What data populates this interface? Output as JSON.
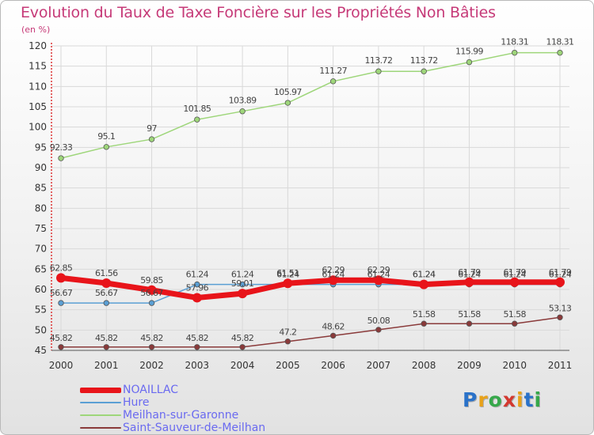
{
  "title": "Evolution du Taux de Taxe Foncière sur les Propriétés Non Bâties",
  "unit": "(en %)",
  "logo": {
    "text": "Proxiti",
    "letter_colors": [
      "#2a72c9",
      "#e8a21a",
      "#36a84a",
      "#d3382f",
      "#e8a21a",
      "#2a72c9",
      "#36a84a"
    ]
  },
  "chart_data": {
    "type": "line",
    "title": "Evolution du Taux de Taxe Foncière sur les Propriétés Non Bâties",
    "ylabel": "(en %)",
    "xlabel": "",
    "x": [
      "2000",
      "2001",
      "2002",
      "2003",
      "2004",
      "2005",
      "2006",
      "2007",
      "2008",
      "2009",
      "2010",
      "2011"
    ],
    "ylim": [
      45,
      120
    ],
    "yticks": [
      "45",
      "50",
      "55",
      "60",
      "65",
      "70",
      "75",
      "80",
      "85",
      "90",
      "95",
      "100",
      "105",
      "110",
      "115",
      "120"
    ],
    "grid": true,
    "legend_position": "bottom-left",
    "series": [
      {
        "name": "NOAILLAC",
        "color": "#e8141a",
        "values": [
          62.85,
          61.56,
          59.85,
          57.96,
          59.01,
          61.51,
          62.29,
          62.29,
          61.24,
          61.79,
          61.79,
          61.79
        ],
        "labels": [
          "62.85",
          "61.56",
          "59.85",
          "57.96",
          "59.01",
          "61.51",
          "62.29",
          "62.29",
          "61.24",
          "61.79",
          "61.79",
          "61.79"
        ]
      },
      {
        "name": "Hure",
        "color": "#5a9fd4",
        "values": [
          56.67,
          56.67,
          56.67,
          61.24,
          61.24,
          61.24,
          61.24,
          61.24,
          61.24,
          61.24,
          61.24,
          61.24
        ],
        "labels": [
          "56.67",
          "56.67",
          "56.67",
          "61.24",
          "61.24",
          "61.24",
          "61.24",
          "61.24",
          "61.24",
          "61.24",
          "61.24",
          "61.24"
        ]
      },
      {
        "name": "Meilhan-sur-Garonne",
        "color": "#9ed67a",
        "values": [
          92.33,
          95.1,
          97,
          101.85,
          103.89,
          105.97,
          111.27,
          113.72,
          113.72,
          115.99,
          118.31,
          118.31
        ],
        "labels": [
          "92.33",
          "95.1",
          "97",
          "101.85",
          "103.89",
          "105.97",
          "111.27",
          "113.72",
          "113.72",
          "115.99",
          "118.31",
          "118.31"
        ]
      },
      {
        "name": "Saint-Sauveur-de-Meilhan",
        "color": "#8a3a3a",
        "values": [
          45.82,
          45.82,
          45.82,
          45.82,
          45.82,
          47.2,
          48.62,
          50.08,
          51.58,
          51.58,
          51.58,
          53.13
        ],
        "labels": [
          "45.82",
          "45.82",
          "45.82",
          "45.82",
          "45.82",
          "47.2",
          "48.62",
          "50.08",
          "51.58",
          "51.58",
          "51.58",
          "53.13"
        ]
      }
    ]
  }
}
